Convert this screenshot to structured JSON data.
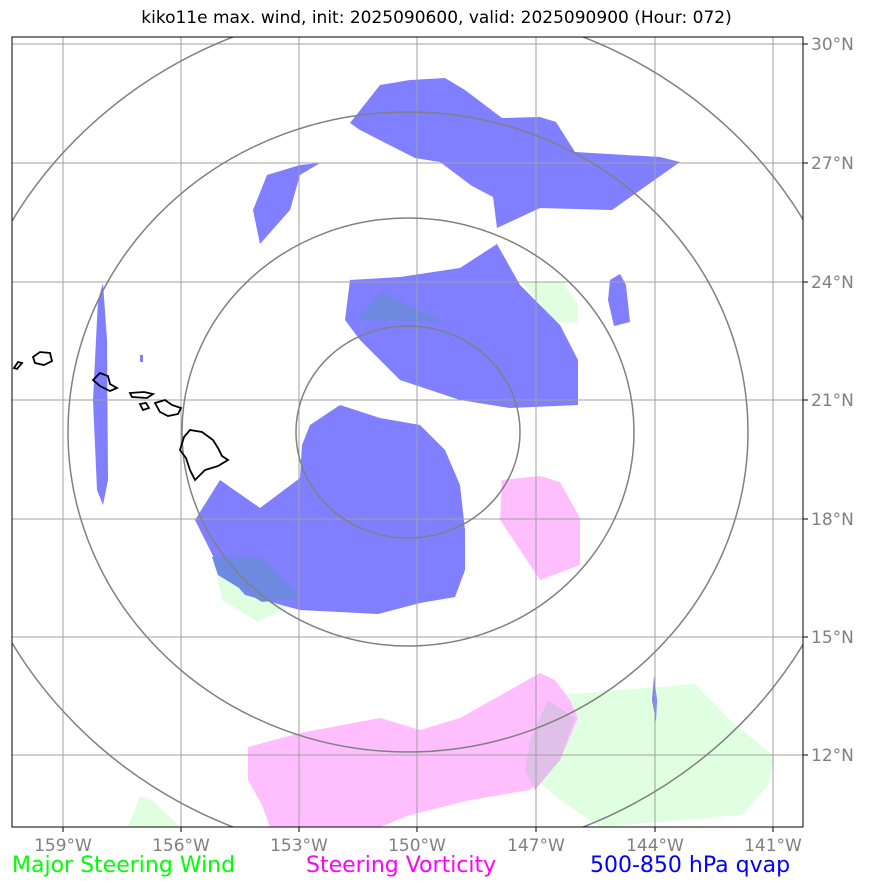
{
  "title": "kiko11e max. wind, init: 2025090600, valid: 2025090900 (Hour: 072)",
  "lon_labels": [
    "159°W",
    "156°W",
    "153°W",
    "150°W",
    "147°W",
    "144°W",
    "141°W"
  ],
  "lat_labels": [
    "30°N",
    "27°N",
    "24°N",
    "21°N",
    "18°N",
    "15°N",
    "12°N"
  ],
  "legend": {
    "wind": {
      "label": "Major Steering Wind",
      "color": "#00ff00"
    },
    "vorticity": {
      "label": "Steering Vorticity",
      "color": "#ff00ff"
    },
    "qvap": {
      "label": "500-850 hPa qvap",
      "color": "#0000ff"
    }
  },
  "colors": {
    "qvap_fill": "#7f7fff",
    "vorticity_fill": "#ffbfff",
    "wind_fill": "#e0ffe0",
    "grid": "#a0a0a0",
    "range_rings": "#808080",
    "coastline": "#000000"
  }
}
